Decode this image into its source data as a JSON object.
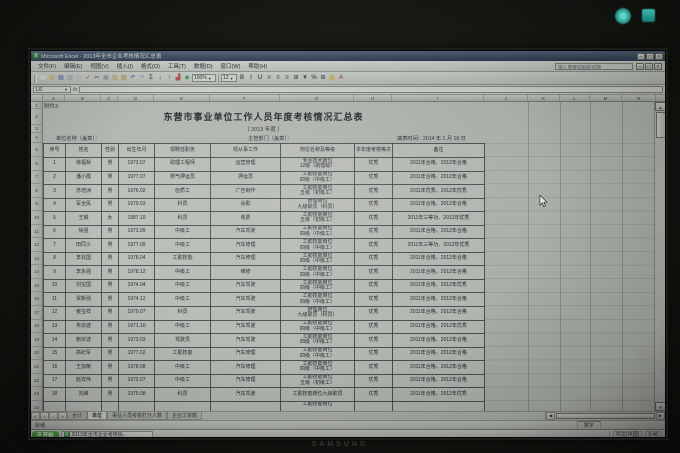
{
  "bezel": {
    "brand": "SAMSUNG"
  },
  "window": {
    "title": "Microsoft Excel - 2013年全市企业考核情况汇总表",
    "buttons": [
      {
        "name": "minimize-icon",
        "glyph": "–"
      },
      {
        "name": "restore-icon",
        "glyph": "□"
      },
      {
        "name": "close-icon",
        "glyph": "×"
      }
    ]
  },
  "menu": {
    "items": [
      "文件(F)",
      "编辑(E)",
      "视图(V)",
      "插入(I)",
      "格式(O)",
      "工具(T)",
      "数据(D)",
      "窗口(W)",
      "帮助(H)"
    ],
    "help_box": "键入需要帮助的问题"
  },
  "toolbar": {
    "zoom": "100%",
    "font_size": "12",
    "std_icons": [
      {
        "name": "new-icon",
        "glyph": "▤",
        "color": "#f0f2ee"
      },
      {
        "name": "open-icon",
        "glyph": "▤",
        "color": "#d4b860"
      },
      {
        "name": "save-icon",
        "glyph": "▦",
        "color": "#6a7cae"
      },
      {
        "name": "print-icon",
        "glyph": "▥",
        "color": "#9aa0a6"
      },
      {
        "name": "preview-icon",
        "glyph": "▧",
        "color": "#c0c6cc"
      },
      {
        "name": "spelling-icon",
        "glyph": "✓",
        "color": "#b05050"
      },
      {
        "name": "cut-icon",
        "glyph": "✂",
        "color": "#50545a"
      },
      {
        "name": "copy-icon",
        "glyph": "▣",
        "color": "#8890a0"
      },
      {
        "name": "paste-icon",
        "glyph": "▨",
        "color": "#c0a060"
      },
      {
        "name": "format-painter-icon",
        "glyph": "▧",
        "color": "#b89040"
      },
      {
        "name": "undo-icon",
        "glyph": "↶",
        "color": "#3a5ab0"
      },
      {
        "name": "redo-icon",
        "glyph": "↷",
        "color": "#8a94a4"
      },
      {
        "name": "autosum-icon",
        "glyph": "Σ",
        "color": "#2e3236"
      },
      {
        "name": "sort-asc-icon",
        "glyph": "↓",
        "color": "#2e4ea0"
      },
      {
        "name": "sort-desc-icon",
        "glyph": "↑",
        "color": "#2e4ea0"
      },
      {
        "name": "chart-wizard-icon",
        "glyph": "▟",
        "color": "#b05050"
      },
      {
        "name": "drawing-icon",
        "glyph": "◆",
        "color": "#3e9a5e"
      }
    ],
    "fmt_icons": [
      {
        "name": "bold-icon",
        "glyph": "B",
        "color": "#26292c"
      },
      {
        "name": "italic-icon",
        "glyph": "I",
        "color": "#26292c"
      },
      {
        "name": "underline-icon",
        "glyph": "U",
        "color": "#26292c"
      },
      {
        "name": "align-left-icon",
        "glyph": "≡",
        "color": "#44484c"
      },
      {
        "name": "align-center-icon",
        "glyph": "≡",
        "color": "#44484c"
      },
      {
        "name": "align-right-icon",
        "glyph": "≡",
        "color": "#44484c"
      },
      {
        "name": "merge-center-icon",
        "glyph": "⊞",
        "color": "#44484c"
      },
      {
        "name": "currency-icon",
        "glyph": "¥",
        "color": "#26292c"
      },
      {
        "name": "percent-icon",
        "glyph": "%",
        "color": "#26292c"
      },
      {
        "name": "borders-icon",
        "glyph": "⊞",
        "color": "#44484c"
      },
      {
        "name": "fill-color-icon",
        "glyph": "▩",
        "color": "#c8b040"
      },
      {
        "name": "font-color-icon",
        "glyph": "A",
        "color": "#b03030"
      }
    ]
  },
  "formula": {
    "name_box": "L6"
  },
  "columns": [
    "A",
    "B",
    "C",
    "D",
    "E",
    "F",
    "G",
    "H",
    "I",
    "J",
    "K",
    "L",
    "M",
    "N"
  ],
  "sheet": {
    "attachment": "附件3",
    "title": "东营市事业单位工作人员年度考核情况汇总表",
    "subtitle": "（    2013    年度 ）",
    "unit_label": "单位名称（盖章）：",
    "dept_label": "主管部门（盖章）：",
    "date_label": "填表时间：2014 年 1 月 16 日",
    "header": [
      "序号",
      "姓名",
      "性别",
      "出生年月",
      "现聘任职务",
      "现从事工作",
      "岗位名称及等级",
      "本年度考核等次",
      "备注"
    ],
    "rows": [
      [
        "1",
        "徐福祯",
        "男",
        "1973.07",
        "助理工程师",
        "运营管理",
        "专业技术岗位\n12级（助理级）",
        "优秀",
        "2011年合格、2012年合格"
      ],
      [
        "2",
        "潘小霞",
        "男",
        "1977.07",
        "燃气押运员",
        "押运员",
        "工勤技能岗位\n四级（中级工）",
        "优秀",
        "2011年合格、2012年合格"
      ],
      [
        "3",
        "苏培洲",
        "男",
        "1976.02",
        "检质工",
        "广告制作",
        "工勤技能岗位\n五级（初级工）",
        "优秀",
        "2011年优秀、2012年优秀"
      ],
      [
        "4",
        "军全民",
        "男",
        "1979.03",
        "科员",
        "会勤",
        "管理岗位\n九级职员（科员）",
        "优秀",
        "2011年合格、2012年合格"
      ],
      [
        "5",
        "王娟",
        "女",
        "1987.10",
        "科员",
        "收费",
        "工勤技能岗位\n五级（初级工）",
        "优秀",
        "2011年三等功、2012年优秀"
      ],
      [
        "6",
        "徐强",
        "男",
        "1973.09",
        "中级工",
        "汽车驾驶",
        "工勤技能岗位\n四级（中级工）",
        "优秀",
        "2011年合格、2012年合格"
      ],
      [
        "7",
        "田同义",
        "男",
        "1977.09",
        "中级工",
        "汽车修理",
        "工勤技能岗位\n四级（中级工）",
        "优秀",
        "2011年三等功、2012年优秀"
      ],
      [
        "8",
        "李兆国",
        "男",
        "1978.04",
        "工勤技能",
        "汽车修理",
        "工勤技能岗位\n四级（中级工）",
        "优秀",
        "2011年合格、2012年合格"
      ],
      [
        "9",
        "李永强",
        "男",
        "1978.12",
        "中级工",
        "维修",
        "工勤技能岗位\n四级（中级工）",
        "优秀",
        "2011年合格、2012年合格"
      ],
      [
        "10",
        "刘宝国",
        "男",
        "1974.04",
        "中级工",
        "汽车驾驶",
        "工勤技能岗位\n四级（中级工）",
        "优秀",
        "2011年合格、2012年优秀"
      ],
      [
        "11",
        "贾新强",
        "男",
        "1974.12",
        "中级工",
        "汽车驾驶",
        "工勤技能岗位\n四级（中级工）",
        "优秀",
        "2011年合格、2012年合格"
      ],
      [
        "12",
        "姜宝祥",
        "男",
        "1979.07",
        "科员",
        "汽车驾驶",
        "管理岗位\n九级职员（科员）",
        "优秀",
        "2011年合格、2012年合格"
      ],
      [
        "13",
        "朱宗波",
        "男",
        "1971.10",
        "中级工",
        "汽车驾驶",
        "工勤技能岗位\n四级（中级工）",
        "优秀",
        "2011年合格、2012年优秀"
      ],
      [
        "14",
        "鲍宗波",
        "男",
        "1973.03",
        "驾驶员",
        "汽车驾驶",
        "工勤技能岗位\n四级（中级工）",
        "优秀",
        "2011年合格、2012年合格"
      ],
      [
        "15",
        "高纪军",
        "男",
        "1977.02",
        "工勤技能",
        "汽车修理",
        "工勤技能岗位\n四级（中级工）",
        "优秀",
        "2011年合格、2012年合格"
      ],
      [
        "16",
        "王加荣",
        "男",
        "1978.08",
        "中级工",
        "汽车修理",
        "工勤技能岗位\n四级（中级工）",
        "优秀",
        "2011年合格、2012年合格"
      ],
      [
        "17",
        "赵祥伟",
        "男",
        "1973.07",
        "中级工",
        "汽车修理",
        "工勤技能岗位\n五级（初级工）",
        "优秀",
        "2011年合格、2012年合格"
      ],
      [
        "18",
        "刘峰",
        "男",
        "1975.08",
        "科员",
        "汽车驾驶",
        "工勤技能岗位九级职员",
        "优秀",
        "2011年合格、2012年优秀"
      ]
    ],
    "partial_row": [
      "",
      "",
      "",
      "",
      "",
      "",
      "工勤技能岗位",
      "",
      ""
    ],
    "visible_row_count": 24
  },
  "tabs": {
    "nav": [
      "«",
      "‹",
      "›",
      "»"
    ],
    "items": [
      "合计",
      "单位",
      "事业人员考核打分人数",
      "企业工资数"
    ],
    "active_index": 1
  },
  "status": {
    "ready": "就绪",
    "num": "数字"
  },
  "taskbar": {
    "start_label": "开始",
    "task_label": "2013年全市企业考核情..",
    "tray_ime": "中文(中国)",
    "tray_time": "9:46"
  }
}
